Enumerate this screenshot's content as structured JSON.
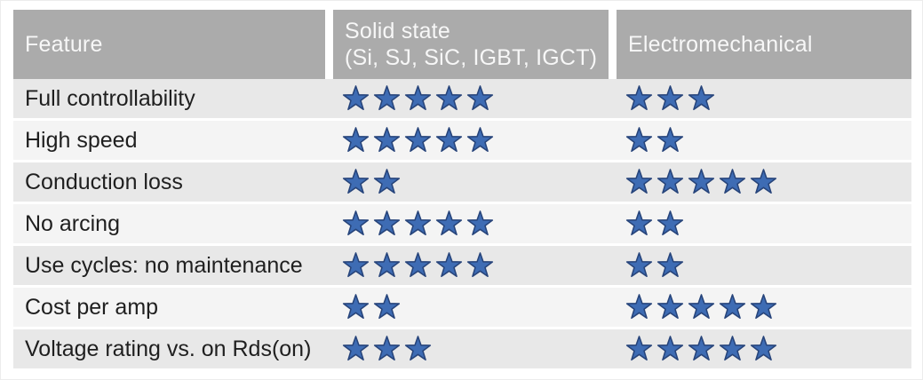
{
  "table": {
    "columns": [
      {
        "label": "Feature"
      },
      {
        "label": "Solid state",
        "sublabel": "(Si, SJ, SiC, IGBT, IGCT)"
      },
      {
        "label": "Electromechanical"
      }
    ],
    "max_stars": 5,
    "rows": [
      {
        "feature": "Full controllability",
        "solid_state": 5,
        "electromechanical": 3
      },
      {
        "feature": "High speed",
        "solid_state": 5,
        "electromechanical": 2
      },
      {
        "feature": "Conduction loss",
        "solid_state": 2,
        "electromechanical": 5
      },
      {
        "feature": "No arcing",
        "solid_state": 5,
        "electromechanical": 2
      },
      {
        "feature": "Use cycles: no maintenance",
        "solid_state": 5,
        "electromechanical": 2
      },
      {
        "feature": "Cost per amp",
        "solid_state": 2,
        "electromechanical": 5
      },
      {
        "feature": "Voltage rating vs. on Rds(on)",
        "solid_state": 3,
        "electromechanical": 5
      }
    ]
  },
  "chart_data": {
    "type": "table",
    "title": "",
    "categories": [
      "Full controllability",
      "High speed",
      "Conduction loss",
      "No arcing",
      "Use cycles: no maintenance",
      "Cost per amp",
      "Voltage rating vs. on Rds(on)"
    ],
    "series": [
      {
        "name": "Solid state (Si, SJ, SiC, IGBT, IGCT)",
        "values": [
          5,
          5,
          2,
          5,
          5,
          2,
          3
        ]
      },
      {
        "name": "Electromechanical",
        "values": [
          3,
          2,
          5,
          2,
          2,
          5,
          5
        ]
      }
    ],
    "value_unit": "stars",
    "value_range": [
      0,
      5
    ],
    "legend_position": "none",
    "grid": false
  },
  "icons": {
    "star": "star-icon"
  },
  "colors": {
    "header_bg": "#ababab",
    "header_text": "#f7f7f7",
    "row_odd_bg": "#e8e8e8",
    "row_even_bg": "#f4f4f4",
    "body_text": "#1f1f1f",
    "star_fill": "#3e6cb4",
    "star_stroke": "#27447a",
    "separator": "#ffffff"
  }
}
